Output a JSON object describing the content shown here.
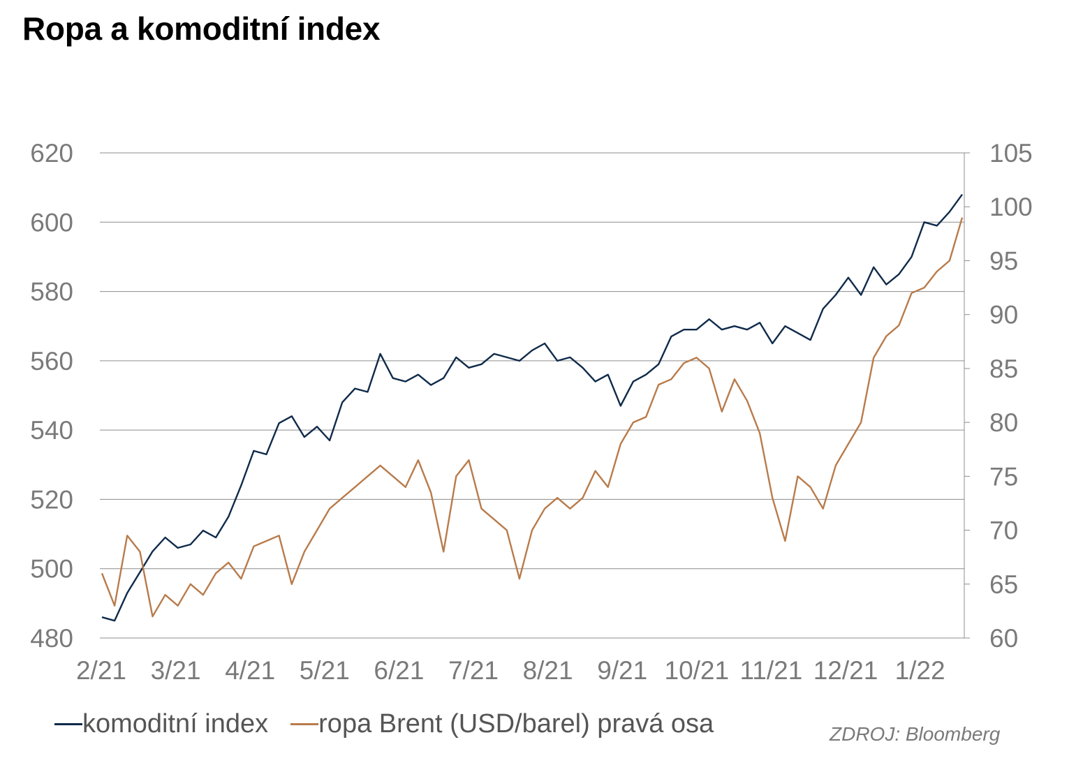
{
  "title": "Ropa a komoditní index",
  "source": "ZDROJ: Bloomberg",
  "chart_data": {
    "type": "line",
    "title": "Ropa a komoditní index",
    "xlabel": "",
    "ylabel": "",
    "grid": true,
    "legend_position": "bottom",
    "x_ticks": [
      "2/21",
      "3/21",
      "4/21",
      "5/21",
      "6/21",
      "7/21",
      "8/21",
      "9/21",
      "10/21",
      "11/21",
      "12/21",
      "1/22"
    ],
    "y_left": {
      "lim": [
        480,
        620
      ],
      "ticks": [
        480,
        500,
        520,
        540,
        560,
        580,
        600,
        620
      ]
    },
    "y_right": {
      "lim": [
        60,
        105
      ],
      "ticks": [
        60,
        65,
        70,
        75,
        80,
        85,
        90,
        95,
        100,
        105
      ]
    },
    "series": [
      {
        "name": "komoditní index",
        "axis": "left",
        "color": "#0f2a4a",
        "points": [
          [
            "2/21",
            486
          ],
          [
            "2/21+",
            485
          ],
          [
            "3/21-",
            493
          ],
          [
            "3/21-",
            499
          ],
          [
            "3/21",
            505
          ],
          [
            "3/21",
            509
          ],
          [
            "3/21+",
            506
          ],
          [
            "4/21-",
            507
          ],
          [
            "4/21-",
            511
          ],
          [
            "4/21-",
            509
          ],
          [
            "4/21",
            515
          ],
          [
            "4/21",
            524
          ],
          [
            "4/21+",
            534
          ],
          [
            "4/21+",
            533
          ],
          [
            "5/21-",
            542
          ],
          [
            "5/21-",
            544
          ],
          [
            "5/21-",
            538
          ],
          [
            "5/21",
            541
          ],
          [
            "5/21",
            537
          ],
          [
            "5/21+",
            548
          ],
          [
            "5/21+",
            552
          ],
          [
            "6/21-",
            551
          ],
          [
            "6/21-",
            562
          ],
          [
            "6/21-",
            555
          ],
          [
            "6/21",
            554
          ],
          [
            "6/21",
            556
          ],
          [
            "6/21+",
            553
          ],
          [
            "6/21+",
            555
          ],
          [
            "7/21-",
            561
          ],
          [
            "7/21-",
            558
          ],
          [
            "7/21",
            559
          ],
          [
            "7/21",
            562
          ],
          [
            "7/21+",
            561
          ],
          [
            "7/21+",
            560
          ],
          [
            "8/21-",
            563
          ],
          [
            "8/21-",
            565
          ],
          [
            "8/21",
            560
          ],
          [
            "8/21",
            561
          ],
          [
            "8/21+",
            558
          ],
          [
            "8/21+",
            554
          ],
          [
            "9/21-",
            556
          ],
          [
            "9/21-",
            547
          ],
          [
            "9/21",
            554
          ],
          [
            "9/21",
            556
          ],
          [
            "9/21+",
            559
          ],
          [
            "10/21-",
            567
          ],
          [
            "10/21-",
            569
          ],
          [
            "10/21",
            569
          ],
          [
            "10/21",
            572
          ],
          [
            "10/21+",
            569
          ],
          [
            "11/21-",
            570
          ],
          [
            "11/21-",
            569
          ],
          [
            "11/21",
            571
          ],
          [
            "11/21",
            565
          ],
          [
            "11/21+",
            570
          ],
          [
            "12/21-",
            568
          ],
          [
            "12/21-",
            566
          ],
          [
            "12/21",
            575
          ],
          [
            "12/21",
            579
          ],
          [
            "12/21+",
            584
          ],
          [
            "1/22-",
            579
          ],
          [
            "1/22-",
            587
          ],
          [
            "1/22",
            582
          ],
          [
            "1/22",
            585
          ],
          [
            "1/22+",
            590
          ],
          [
            "1/22+",
            600
          ],
          [
            "1/22+",
            599
          ],
          [
            "1/22+",
            603
          ],
          [
            "1/22+",
            608
          ]
        ]
      },
      {
        "name": "ropa Brent (USD/barel) pravá osa",
        "axis": "right",
        "color": "#b87b4b",
        "points": [
          [
            "2/21",
            66
          ],
          [
            "2/21+",
            63
          ],
          [
            "3/21-",
            69.5
          ],
          [
            "3/21-",
            68
          ],
          [
            "3/21",
            62
          ],
          [
            "3/21",
            64
          ],
          [
            "3/21+",
            63
          ],
          [
            "4/21-",
            65
          ],
          [
            "4/21-",
            64
          ],
          [
            "4/21-",
            66
          ],
          [
            "4/21",
            67
          ],
          [
            "4/21",
            65.5
          ],
          [
            "4/21+",
            68.5
          ],
          [
            "4/21+",
            69
          ],
          [
            "5/21-",
            69.5
          ],
          [
            "5/21-",
            65
          ],
          [
            "5/21-",
            68
          ],
          [
            "5/21",
            70
          ],
          [
            "5/21",
            72
          ],
          [
            "5/21+",
            73
          ],
          [
            "5/21+",
            74
          ],
          [
            "6/21-",
            75
          ],
          [
            "6/21-",
            76
          ],
          [
            "6/21-",
            75
          ],
          [
            "6/21",
            74
          ],
          [
            "6/21",
            76.5
          ],
          [
            "6/21+",
            73.5
          ],
          [
            "6/21+",
            68
          ],
          [
            "7/21-",
            75
          ],
          [
            "7/21-",
            76.5
          ],
          [
            "7/21",
            72
          ],
          [
            "7/21",
            71
          ],
          [
            "7/21+",
            70
          ],
          [
            "7/21+",
            65.5
          ],
          [
            "8/21-",
            70
          ],
          [
            "8/21-",
            72
          ],
          [
            "8/21",
            73
          ],
          [
            "8/21",
            72
          ],
          [
            "8/21+",
            73
          ],
          [
            "8/21+",
            75.5
          ],
          [
            "9/21-",
            74
          ],
          [
            "9/21-",
            78
          ],
          [
            "9/21",
            80
          ],
          [
            "9/21",
            80.5
          ],
          [
            "9/21+",
            83.5
          ],
          [
            "10/21-",
            84
          ],
          [
            "10/21-",
            85.5
          ],
          [
            "10/21",
            86
          ],
          [
            "10/21",
            85
          ],
          [
            "10/21+",
            81
          ],
          [
            "11/21-",
            84
          ],
          [
            "11/21-",
            82
          ],
          [
            "11/21",
            79
          ],
          [
            "11/21",
            73
          ],
          [
            "11/21+",
            69
          ],
          [
            "12/21-",
            75
          ],
          [
            "12/21-",
            74
          ],
          [
            "12/21",
            72
          ],
          [
            "12/21",
            76
          ],
          [
            "12/21+",
            78
          ],
          [
            "1/22-",
            80
          ],
          [
            "1/22-",
            86
          ],
          [
            "1/22",
            88
          ],
          [
            "1/22",
            89
          ],
          [
            "1/22+",
            92
          ],
          [
            "1/22+",
            92.5
          ],
          [
            "1/22+",
            94
          ],
          [
            "1/22+",
            95
          ],
          [
            "1/22+",
            99
          ]
        ]
      }
    ]
  }
}
